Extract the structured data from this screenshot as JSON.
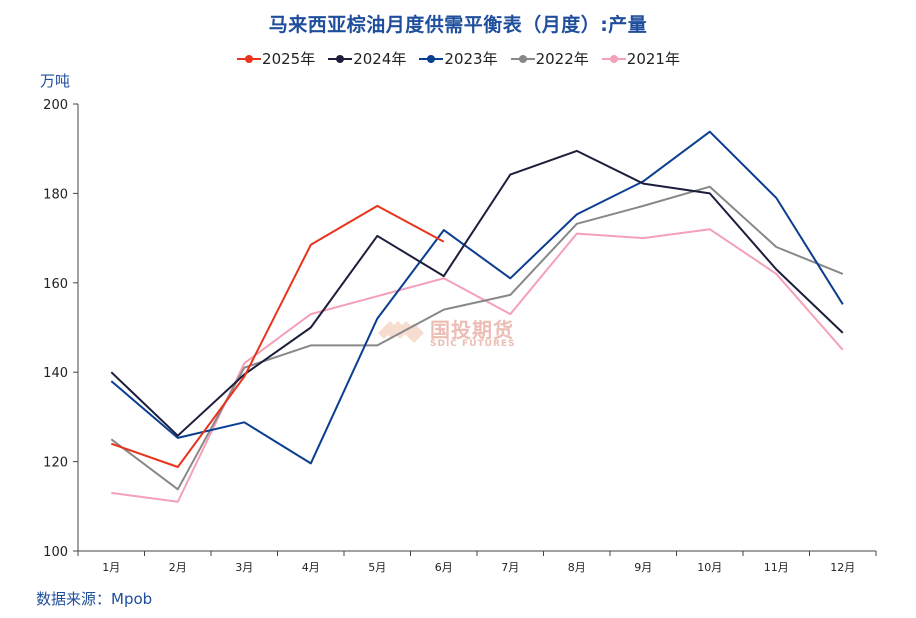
{
  "title": "马来西亚棕油月度供需平衡表（月度）:产量",
  "ylabel": "万吨",
  "source": "数据来源：Mpob",
  "watermark": {
    "cn": "国投期货",
    "en": "SDIC FUTURES"
  },
  "chart_data": {
    "type": "line",
    "categories": [
      "1月",
      "2月",
      "3月",
      "4月",
      "5月",
      "6月",
      "7月",
      "8月",
      "9月",
      "10月",
      "11月",
      "12月"
    ],
    "ylim": [
      100,
      200
    ],
    "yticks": [
      100,
      120,
      140,
      160,
      180,
      200
    ],
    "legend_position": "top-center",
    "grid": false,
    "series": [
      {
        "name": "2025年",
        "color": "#e8341c",
        "marker": "#e8341c",
        "values": [
          124,
          118.8,
          139,
          168.5,
          177.2,
          169.2,
          null,
          null,
          null,
          null,
          null,
          null
        ]
      },
      {
        "name": "2024年",
        "color": "#1c1f3c",
        "marker": "#1c1f3c",
        "values": [
          140,
          125.8,
          139.5,
          150,
          170.5,
          161.5,
          184.2,
          189.5,
          182.2,
          180,
          163,
          148.8
        ]
      },
      {
        "name": "2023年",
        "color": "#0b3d91",
        "marker": "#0b3d91",
        "values": [
          138,
          125.3,
          128.8,
          119.6,
          152,
          171.8,
          161,
          175.3,
          182.7,
          193.8,
          179,
          155.2
        ]
      },
      {
        "name": "2022年",
        "color": "#888888",
        "marker": "#888888",
        "values": [
          125,
          113.8,
          141,
          146,
          146,
          154,
          157.3,
          173.2,
          177.2,
          181.5,
          168,
          162
        ]
      },
      {
        "name": "2021年",
        "color": "#f4a0b8",
        "marker": "#f4a0b8",
        "values": [
          113,
          111,
          142,
          153,
          157,
          161,
          153,
          171,
          170,
          172,
          162,
          145
        ]
      }
    ]
  }
}
